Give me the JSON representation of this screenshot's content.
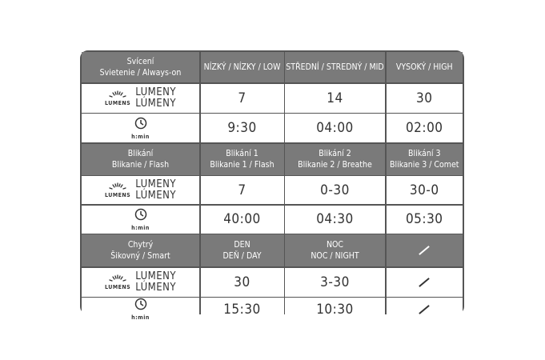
{
  "lumens_icon_label": "LUMENS",
  "lumens_words": [
    "LUMENY",
    "LÚMENY"
  ],
  "time_icon_label": "h:min",
  "sections": [
    {
      "name": [
        "Svícení",
        "Svietenie / Always-on"
      ],
      "modes": [
        [
          "NÍZKÝ / NÍZKY / LOW"
        ],
        [
          "STŘEDNÍ / STREDNÝ / MID"
        ],
        [
          "VYSOKÝ / HIGH"
        ]
      ],
      "lumens": [
        "7",
        "14",
        "30"
      ],
      "time": [
        "9:30",
        "04:00",
        "02:00"
      ]
    },
    {
      "name": [
        "Blikání",
        "Blikanie  / Flash"
      ],
      "modes": [
        [
          "Blikání 1",
          "Blikanie 1 / Flash"
        ],
        [
          "Blikání 2",
          "Blikanie 2 / Breathe"
        ],
        [
          "Blikání 3",
          "Blikanie 3 / Comet"
        ]
      ],
      "lumens": [
        "7",
        "0-30",
        "30-0"
      ],
      "time": [
        "40:00",
        "04:30",
        "05:30"
      ]
    },
    {
      "name": [
        "Chytrý",
        "Šikovný / Smart"
      ],
      "modes": [
        [
          "DEN",
          "DEŇ / DAY"
        ],
        [
          "NOC",
          "NOC / NIGHT"
        ],
        null
      ],
      "lumens": [
        "30",
        "3-30",
        null
      ],
      "time": [
        "15:30",
        "10:30",
        null
      ]
    }
  ]
}
